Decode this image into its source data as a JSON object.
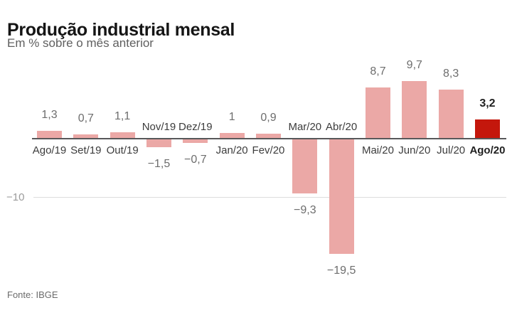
{
  "header": {
    "title": "Produção industrial mensal",
    "subtitle": "Em % sobre o mês anterior"
  },
  "footer": {
    "source": "Fonte: IBGE"
  },
  "chart_data": {
    "type": "bar",
    "title": "Produção industrial mensal",
    "subtitle": "Em % sobre o mês anterior",
    "xlabel": "",
    "ylabel": "Em % sobre o mês anterior",
    "categories": [
      "Ago/19",
      "Set/19",
      "Out/19",
      "Nov/19",
      "Dez/19",
      "Jan/20",
      "Fev/20",
      "Mar/20",
      "Abr/20",
      "Mai/20",
      "Jun/20",
      "Jul/20",
      "Ago/20"
    ],
    "values": [
      1.3,
      0.7,
      1.1,
      -1.5,
      -0.7,
      1,
      0.9,
      -9.3,
      -19.5,
      8.7,
      9.7,
      8.3,
      3.2
    ],
    "value_labels": [
      "1,3",
      "0,7",
      "1,1",
      "−1,5",
      "−0,7",
      "1",
      "0,9",
      "−9,3",
      "−19,5",
      "8,7",
      "9,7",
      "8,3",
      "3,2"
    ],
    "highlight_index": 12,
    "ylim": [
      -21,
      11
    ],
    "grid": "single horizontal gridline at -10",
    "legend": "none",
    "axis": {
      "gridline_value": -10,
      "gridline_label": "−10"
    },
    "colors": {
      "bar": "#eba8a6",
      "highlight": "#c4170c",
      "zero_line": "#58585a",
      "gridline": "#dcdcdc"
    }
  }
}
